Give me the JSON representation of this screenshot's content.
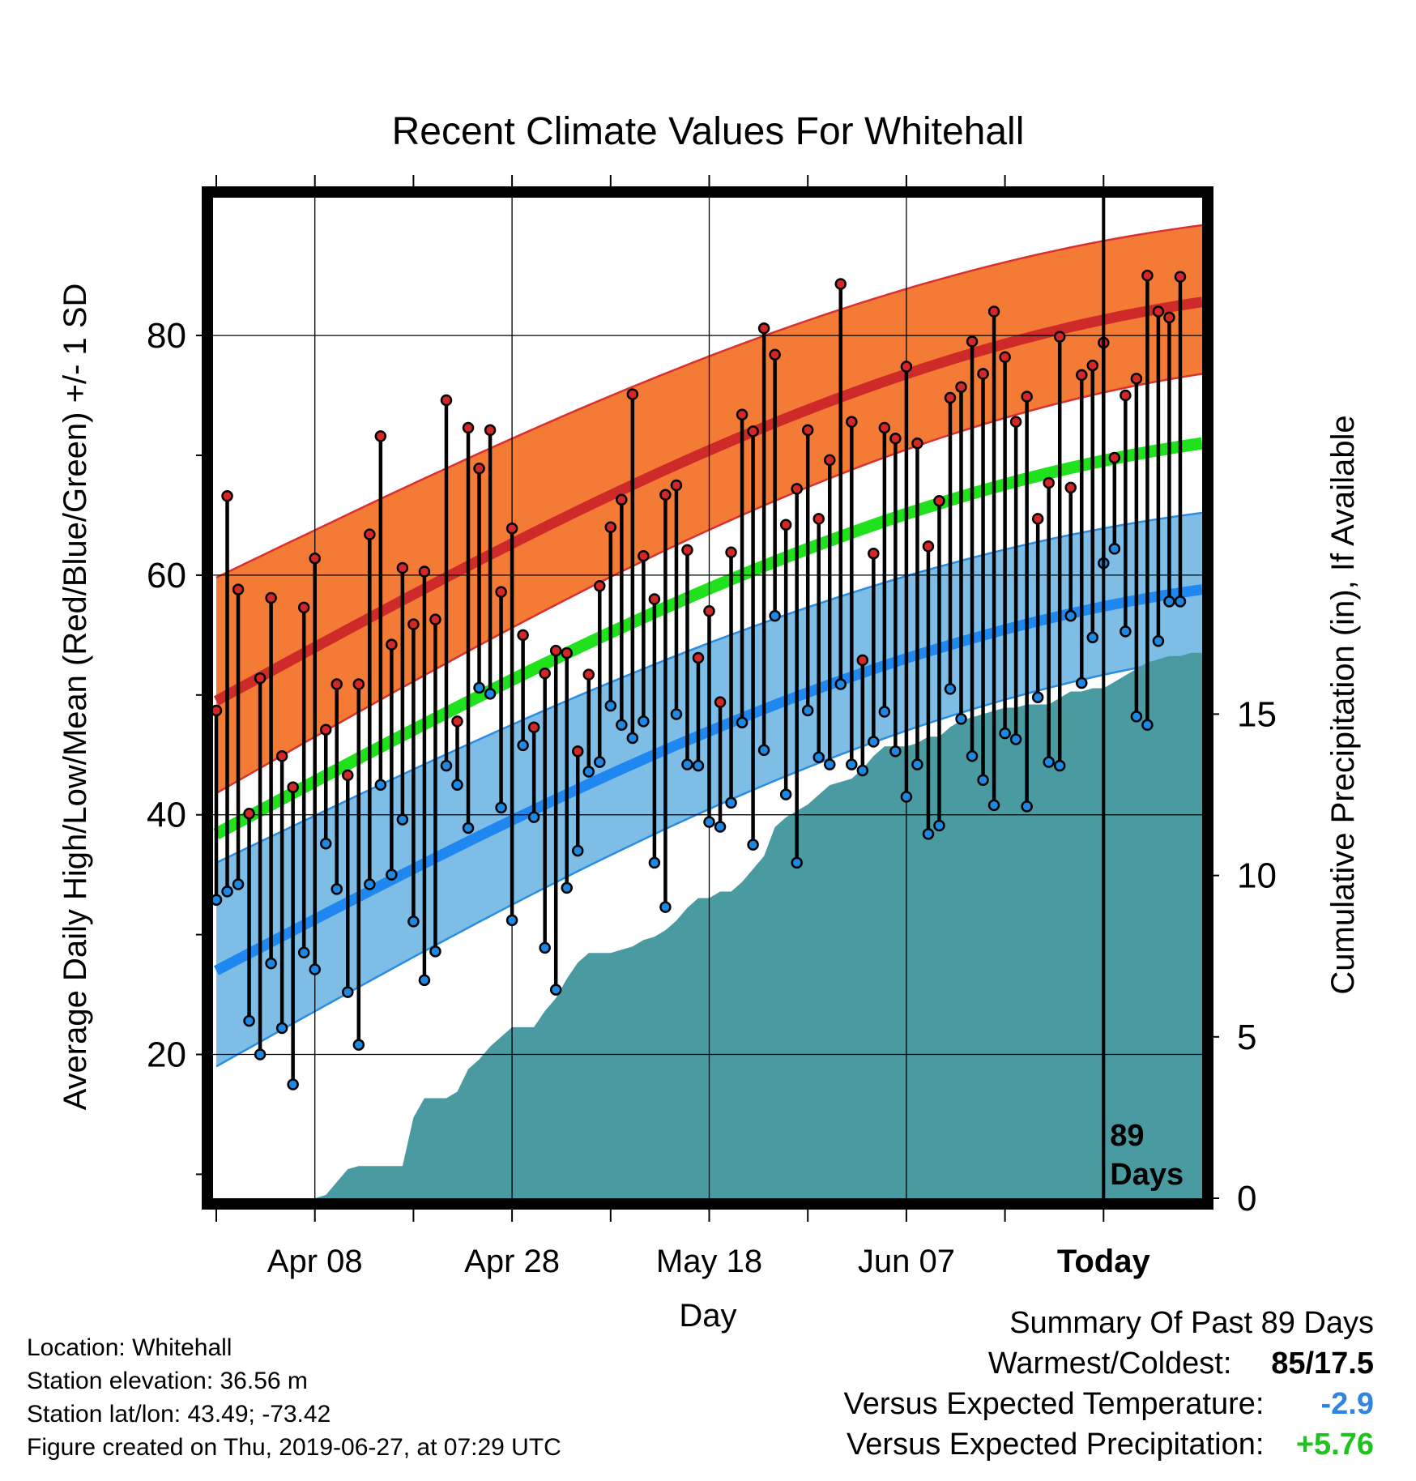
{
  "chart_data": {
    "type": "line",
    "title": "Recent Climate Values For Whitehall",
    "xlabel": "Day",
    "ylabel": "Average Daily High/Low/Mean (Red/Blue/Green) +/- 1 SD",
    "y2label": "Cumulative Precipitation (in), If Available",
    "ylim": [
      8,
      91.5
    ],
    "y2lim": [
      0,
      31
    ],
    "xlim": [
      1,
      91
    ],
    "yticks": [
      80,
      60,
      40,
      20
    ],
    "y2ticks": [
      15,
      10,
      5,
      0
    ],
    "xticks": [
      {
        "day": 10,
        "label": "Apr 08"
      },
      {
        "day": 28,
        "label": "Apr 28"
      },
      {
        "day": 46,
        "label": "May 18"
      },
      {
        "day": 64,
        "label": "Jun 07"
      },
      {
        "day": 82,
        "label": "Today"
      }
    ],
    "today_label": "89\nDays",
    "grid": true,
    "normals": {
      "high_mean": [
        49.5,
        82.8
      ],
      "high_upper": [
        59.8,
        89.2
      ],
      "high_lower": [
        41.8,
        76.8
      ],
      "low_mean": [
        27,
        58.8
      ],
      "low_upper": [
        36,
        65.2
      ],
      "low_lower": [
        19,
        53.2
      ],
      "mean": [
        38.4,
        71
      ]
    },
    "series": [
      {
        "name": "High",
        "color": "#d62728",
        "values": [
          48.7,
          66.6,
          58.8,
          40.1,
          51.4,
          58.1,
          44.9,
          42.3,
          57.3,
          61.4,
          47.1,
          50.9,
          43.3,
          50.9,
          63.4,
          71.6,
          54.2,
          60.6,
          55.9,
          60.3,
          56.3,
          74.6,
          47.8,
          72.3,
          68.9,
          72.1,
          58.6,
          63.9,
          55,
          47.3,
          51.8,
          53.7,
          53.5,
          45.3,
          51.7,
          59.1,
          64,
          66.3,
          75.1,
          61.6,
          58,
          66.7,
          67.5,
          62.1,
          53.1,
          57,
          49.4,
          61.9,
          73.4,
          72,
          80.6,
          78.4,
          64.2,
          67.2,
          72.1,
          64.7,
          69.6,
          84.3,
          72.8,
          52.9,
          61.8,
          72.3,
          71.4,
          77.4,
          71,
          62.4,
          66.2,
          74.8,
          75.7,
          79.5,
          76.8,
          82,
          78.2,
          72.8,
          74.9,
          64.7,
          67.7,
          79.9,
          67.3,
          76.7,
          77.5,
          79.4,
          69.8,
          75,
          76.4,
          85,
          82,
          81.5,
          84.9
        ]
      },
      {
        "name": "Low",
        "color": "#1e88e5",
        "values": [
          32.9,
          33.6,
          34.2,
          22.8,
          20,
          27.6,
          22.2,
          17.5,
          28.5,
          27.1,
          37.6,
          33.8,
          25.2,
          20.8,
          34.2,
          42.5,
          35,
          39.6,
          31.1,
          26.2,
          28.6,
          44.1,
          42.5,
          38.9,
          50.6,
          50.1,
          40.6,
          31.2,
          45.8,
          39.8,
          28.9,
          25.4,
          33.9,
          37,
          43.6,
          44.4,
          49.1,
          47.5,
          46.4,
          47.8,
          36,
          32.3,
          48.4,
          44.2,
          44.1,
          39.4,
          39,
          41,
          47.7,
          37.5,
          45.4,
          56.6,
          41.7,
          36,
          48.7,
          44.8,
          44.2,
          50.9,
          44.2,
          43.7,
          46.1,
          48.6,
          45.3,
          41.5,
          44.2,
          38.4,
          39.1,
          50.5,
          48,
          44.9,
          42.9,
          40.8,
          46.8,
          46.3,
          40.7,
          49.8,
          44.4,
          44.1,
          56.6,
          51,
          54.8,
          61,
          62.2,
          55.3,
          48.2,
          47.5,
          54.5,
          57.8,
          57.8
        ]
      }
    ],
    "precip_cumulative": [
      0,
      0,
      0,
      0,
      0,
      0,
      0,
      0,
      0,
      0,
      0.1,
      0.5,
      0.9,
      1,
      1,
      1,
      1,
      1,
      2.5,
      3.1,
      3.1,
      3.1,
      3.3,
      4,
      4.3,
      4.7,
      5,
      5.3,
      5.3,
      5.3,
      5.8,
      6.2,
      6.8,
      7.3,
      7.6,
      7.6,
      7.6,
      7.7,
      7.8,
      8,
      8.1,
      8.3,
      8.6,
      9,
      9.3,
      9.3,
      9.5,
      9.5,
      9.8,
      10.2,
      10.6,
      11.5,
      11.8,
      12,
      12.2,
      12.5,
      12.8,
      12.9,
      13,
      13.3,
      13.7,
      14,
      14,
      14,
      14.1,
      14.3,
      14.3,
      14.6,
      14.8,
      14.9,
      15,
      15.1,
      15.2,
      15.2,
      15.3,
      15.3,
      15.3,
      15.5,
      15.7,
      15.7,
      15.8,
      15.8,
      16,
      16.2,
      16.4,
      16.6,
      16.7,
      16.8,
      16.8,
      16.9,
      16.9
    ]
  },
  "info": {
    "location": "Location: Whitehall",
    "elevation": "Station elevation: 36.56 m",
    "latlon": "Station lat/lon: 43.49; -73.42",
    "created": "Figure created on Thu, 2019-06-27, at 07:29 UTC"
  },
  "summary": {
    "heading": "Summary Of Past 89 Days",
    "warm_cold_label": "Warmest/Coldest:",
    "warm_cold_value": "85/17.5",
    "temp_label": "Versus Expected Temperature:",
    "temp_value": "-2.9",
    "temp_color": "#2f86e0",
    "precip_label": "Versus Expected Precipitation:",
    "precip_value": "+5.76",
    "precip_color": "#21c21e"
  },
  "colors": {
    "high_band": "#f47b35",
    "high_line": "#cf2a2a",
    "low_band": "#7ebde6",
    "low_line": "#1f88f0",
    "mean_line": "#1fe21c",
    "precip": "#4a9aa1"
  }
}
